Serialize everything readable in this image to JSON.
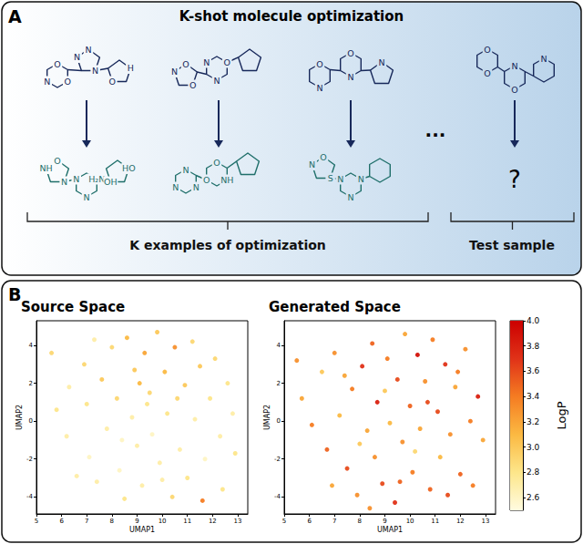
{
  "panel_a": {
    "label": "A",
    "title": "K-shot molecule optimization",
    "examples": [
      {
        "source_atoms": [
          "O",
          "O",
          "N",
          "N",
          "N",
          "N",
          "H",
          "O"
        ],
        "target_atoms": [
          "O",
          "N",
          "NH",
          "H₂N",
          "N",
          "N",
          "HO",
          "OH"
        ]
      },
      {
        "source_atoms": [
          "O",
          "O",
          "N",
          "O",
          "N",
          "N"
        ],
        "target_atoms": [
          "N",
          "N",
          "N",
          "O",
          "NH",
          "O"
        ]
      },
      {
        "source_atoms": [
          "O",
          "N",
          "O",
          "N",
          "N"
        ],
        "target_atoms": [
          "O",
          "S",
          "N",
          "N",
          "N",
          "N"
        ]
      }
    ],
    "ellipsis": "...",
    "test_atoms": [
      "O",
      "O",
      "N",
      "O",
      "N"
    ],
    "unknown": "?",
    "examples_label": "K examples of optimization",
    "test_label": "Test sample"
  },
  "panel_b": {
    "label": "B"
  },
  "colorbar": {
    "title": "LogP",
    "range": [
      2.5,
      4.0
    ],
    "ticks": [
      2.6,
      2.8,
      {
        "value": 3,
        "label": "3.0"
      },
      3.2,
      3.4,
      3.6,
      3.8,
      {
        "value": 4,
        "label": "4.0"
      }
    ],
    "colors": [
      "#fffbe0",
      "#fde68a",
      "#fbb942",
      "#f57c22",
      "#e03218",
      "#cc0000"
    ]
  },
  "chart_data": [
    {
      "type": "scatter",
      "title": "Source Space",
      "xlabel": "UMAP1",
      "ylabel": "UMAP2",
      "xlim": [
        5,
        13.4
      ],
      "ylim": [
        -4.9,
        5.3
      ],
      "xticks": [
        5,
        6,
        7,
        8,
        9,
        10,
        11,
        12,
        13
      ],
      "yticks": [
        -4,
        -2,
        0,
        2,
        4
      ],
      "grid": false,
      "marker": "circle",
      "x": [
        5.8,
        6.3,
        6.2,
        6.9,
        7.0,
        7.1,
        7.4,
        7.6,
        7.8,
        8.0,
        8.2,
        8.3,
        8.5,
        8.6,
        8.8,
        8.9,
        9.0,
        9.2,
        9.3,
        9.5,
        9.6,
        9.8,
        9.9,
        10.1,
        10.2,
        10.4,
        10.5,
        10.7,
        10.9,
        11.0,
        11.2,
        11.3,
        11.5,
        11.7,
        11.9,
        12.1,
        12.3,
        12.6,
        12.8,
        12.9,
        9.4,
        10.0,
        8.4,
        7.3,
        6.6,
        12.4,
        5.6,
        10.6,
        11.6,
        9.1
      ],
      "values": [
        0.6,
        1.8,
        -0.8,
        3.0,
        0.9,
        -1.9,
        -3.2,
        2.2,
        -0.4,
        3.9,
        1.2,
        -2.6,
        -4.1,
        4.4,
        0.2,
        2.7,
        -1.3,
        -3.4,
        3.6,
        1.5,
        -0.7,
        4.7,
        -2.2,
        2.6,
        0.4,
        -4.0,
        3.9,
        -1.5,
        1.9,
        -3.0,
        4.2,
        0.1,
        2.9,
        -2.0,
        1.2,
        3.3,
        -0.8,
        2.0,
        0.4,
        -1.7,
        0.9,
        -3.1,
        -1.0,
        4.3,
        -2.9,
        -3.6,
        3.6,
        1.2,
        -4.2,
        2.0
      ],
      "logp": [
        2.8,
        2.7,
        2.7,
        2.9,
        2.8,
        2.6,
        2.7,
        3.0,
        2.7,
        2.9,
        2.9,
        2.6,
        2.8,
        3.1,
        2.7,
        3.0,
        2.7,
        2.7,
        3.2,
        2.9,
        2.6,
        3.0,
        2.7,
        3.1,
        2.8,
        2.9,
        3.3,
        2.7,
        3.0,
        2.8,
        2.9,
        2.7,
        3.0,
        2.6,
        2.8,
        2.9,
        2.7,
        2.8,
        2.7,
        2.8,
        2.8,
        2.7,
        2.6,
        2.7,
        2.7,
        2.8,
        2.9,
        2.9,
        3.4,
        3.1
      ]
    },
    {
      "type": "scatter",
      "title": "Generated Space",
      "xlabel": "UMAP1",
      "ylabel": "UMAP2",
      "xlim": [
        5,
        13.4
      ],
      "ylim": [
        -4.9,
        5.3
      ],
      "xticks": [
        5,
        6,
        7,
        8,
        9,
        10,
        11,
        12,
        13
      ],
      "yticks": [
        -4,
        -2,
        0,
        2,
        4
      ],
      "grid": false,
      "marker": "circle",
      "x": [
        5.7,
        6.1,
        6.5,
        6.7,
        7.0,
        7.2,
        7.5,
        7.7,
        7.9,
        8.1,
        8.3,
        8.5,
        8.6,
        8.7,
        8.9,
        9.1,
        9.2,
        9.4,
        9.5,
        9.7,
        9.8,
        10.0,
        10.1,
        10.3,
        10.4,
        10.6,
        10.8,
        10.9,
        11.1,
        11.2,
        11.4,
        11.6,
        11.8,
        12.0,
        12.2,
        12.4,
        12.7,
        12.9,
        9.0,
        10.2,
        8.0,
        11.5,
        6.9,
        5.5,
        12.5,
        9.6,
        7.4,
        10.7,
        11.9,
        8.4
      ],
      "values": [
        1.2,
        -0.2,
        2.6,
        -1.5,
        3.6,
        0.3,
        -2.5,
        1.7,
        -3.9,
        2.9,
        -0.5,
        4.1,
        -1.9,
        1.0,
        -3.3,
        3.3,
        -0.1,
        -4.3,
        2.2,
        -1.1,
        4.6,
        0.8,
        -2.7,
        3.5,
        -0.4,
        2.1,
        -3.6,
        4.3,
        0.5,
        -1.9,
        3.0,
        -0.7,
        1.8,
        -2.8,
        3.8,
        0.0,
        1.3,
        -1.0,
        1.6,
        -1.6,
        -1.2,
        -3.9,
        -3.4,
        3.2,
        -3.4,
        -3.2,
        2.4,
        1.0,
        2.6,
        -4.6
      ],
      "logp": [
        3.2,
        3.4,
        3.0,
        3.5,
        3.3,
        3.1,
        3.6,
        3.4,
        3.3,
        3.7,
        3.2,
        3.5,
        3.3,
        3.8,
        3.6,
        3.4,
        3.1,
        3.7,
        3.6,
        3.3,
        3.2,
        3.5,
        3.4,
        3.9,
        3.2,
        3.3,
        3.5,
        3.4,
        3.6,
        3.1,
        3.7,
        3.3,
        3.2,
        3.5,
        3.3,
        3.4,
        3.8,
        3.2,
        3.0,
        2.9,
        3.0,
        3.6,
        3.2,
        3.3,
        3.4,
        3.5,
        3.2,
        3.6,
        3.4,
        3.3
      ]
    }
  ]
}
